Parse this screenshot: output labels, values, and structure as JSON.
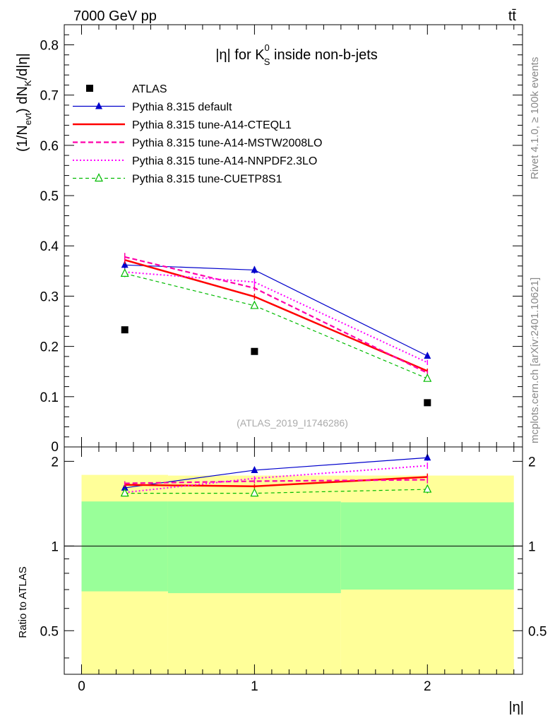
{
  "header": {
    "left": "7000 GeV pp",
    "right": "tt̄"
  },
  "side_labels": {
    "rivet": "Rivet 4.1.0, ≥ 100k events",
    "mcplots": "mcplots.cern.ch [arXiv:2401.10621]"
  },
  "chart_data": [
    {
      "type": "line",
      "panel": "main",
      "title": "|η| for K⁰S inside non-b-jets",
      "title_parts": {
        "pre": "|η| for K",
        "sup": "0",
        "sub": "S",
        "post": " inside non-b-jets"
      },
      "ylabel": "(1/N_evt) dN_K/d|η|",
      "xlim": [
        -0.1,
        2.55
      ],
      "ylim": [
        0,
        0.84
      ],
      "yticks": [
        0.1,
        0.2,
        0.3,
        0.4,
        0.5,
        0.6,
        0.7,
        0.8
      ],
      "ytick_labels": [
        "0.1",
        "0.2",
        "0.3",
        "0.4",
        "0.5",
        "0.6",
        "0.7",
        "0.8"
      ],
      "y_zero_label": "0",
      "x": [
        0.25,
        1.0,
        2.0
      ],
      "watermark": "(ATLAS_2019_I1746286)",
      "legend_position": "top-left",
      "series": [
        {
          "name": "ATLAS",
          "values": [
            0.233,
            0.19,
            0.088
          ],
          "color": "#000000",
          "style": "data"
        },
        {
          "name": "Pythia 8.315 default",
          "values": [
            0.362,
            0.352,
            0.181
          ],
          "errors": [
            0.007,
            0.007,
            0.005
          ],
          "color": "#0000cc",
          "style": "solid-thin",
          "marker": "triangle-filled"
        },
        {
          "name": "Pythia 8.315 tune-A14-CTEQL1",
          "values": [
            0.372,
            0.299,
            0.151
          ],
          "errors": [
            0.008,
            0.006,
            0.005
          ],
          "color": "#ff0000",
          "style": "solid-thick"
        },
        {
          "name": "Pythia 8.315 tune-A14-MSTW2008LO",
          "values": [
            0.378,
            0.316,
            0.147
          ],
          "errors": [
            0.008,
            0.006,
            0.005
          ],
          "color": "#ff00aa",
          "style": "dashed"
        },
        {
          "name": "Pythia 8.315 tune-A14-NNPDF2.3LO",
          "values": [
            0.348,
            0.328,
            0.168
          ],
          "errors": [
            0.007,
            0.007,
            0.005
          ],
          "color": "#ff00ff",
          "style": "dotted"
        },
        {
          "name": "Pythia 8.315 tune-CUETP8S1",
          "values": [
            0.345,
            0.281,
            0.136
          ],
          "errors": [
            0.007,
            0.006,
            0.004
          ],
          "color": "#00bb00",
          "style": "dashed-open-triangle"
        }
      ]
    },
    {
      "type": "line",
      "panel": "ratio",
      "ylabel": "Ratio to ATLAS",
      "xlabel": "|η|",
      "xlim": [
        -0.1,
        2.55
      ],
      "ylim": [
        0.35,
        2.25
      ],
      "yticks": [
        0.5,
        1,
        2
      ],
      "ytick_labels": [
        "0.5",
        "1",
        "2"
      ],
      "xticks": [
        0,
        1,
        2
      ],
      "xtick_labels": [
        "0",
        "1",
        "2"
      ],
      "bands": [
        {
          "x0": 0.0,
          "x1": 0.5,
          "yellow": [
            0.35,
            1.79
          ],
          "green": [
            0.69,
            1.44
          ]
        },
        {
          "x0": 0.5,
          "x1": 1.5,
          "yellow": [
            0.35,
            1.78
          ],
          "green": [
            0.68,
            1.44
          ]
        },
        {
          "x0": 1.5,
          "x1": 2.5,
          "yellow": [
            0.35,
            1.78
          ],
          "green": [
            0.7,
            1.43
          ]
        }
      ],
      "x": [
        0.25,
        1.0,
        2.0
      ],
      "series": [
        {
          "name": "Pythia 8.315 default",
          "values": [
            1.61,
            1.86,
            2.06
          ],
          "errors": [
            0.03,
            0.03,
            0.05
          ]
        },
        {
          "name": "Pythia 8.315 tune-A14-CTEQL1",
          "values": [
            1.65,
            1.63,
            1.76
          ],
          "errors": [
            0.03,
            0.03,
            0.05
          ]
        },
        {
          "name": "Pythia 8.315 tune-A14-MSTW2008LO",
          "values": [
            1.67,
            1.7,
            1.72
          ],
          "errors": [
            0.03,
            0.03,
            0.05
          ]
        },
        {
          "name": "Pythia 8.315 tune-A14-NNPDF2.3LO",
          "values": [
            1.55,
            1.74,
            1.93
          ],
          "errors": [
            0.03,
            0.03,
            0.05
          ]
        },
        {
          "name": "Pythia 8.315 tune-CUETP8S1",
          "values": [
            1.54,
            1.54,
            1.59
          ],
          "errors": [
            0.03,
            0.03,
            0.05
          ]
        }
      ]
    }
  ]
}
